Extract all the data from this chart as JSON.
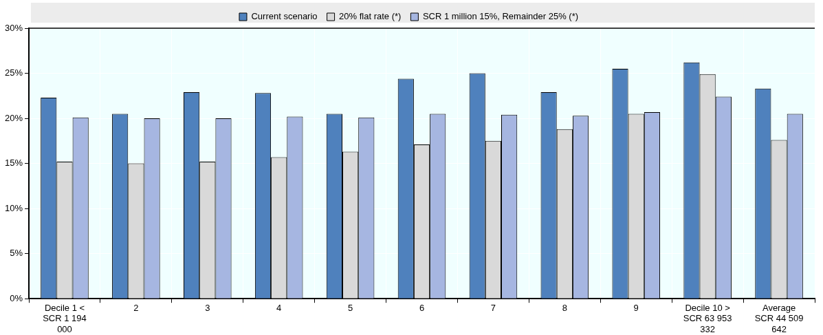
{
  "chart_data": {
    "type": "bar",
    "categories": [
      "Decile 1 < SCR 1 194 000",
      "2",
      "3",
      "4",
      "5",
      "6",
      "7",
      "8",
      "9",
      "Decile 10  > SCR 63 953 332",
      "Average SCR 44 509 642"
    ],
    "series": [
      {
        "name": "Current scenario",
        "color": "#4f81bd",
        "values": [
          22.3,
          20.5,
          22.9,
          22.8,
          20.5,
          24.4,
          25.0,
          22.9,
          25.5,
          26.2,
          23.3
        ]
      },
      {
        "name": "20% flat rate (*)",
        "color": "#d9d9d9",
        "values": [
          15.2,
          15.0,
          15.2,
          15.7,
          16.3,
          17.1,
          17.5,
          18.8,
          20.5,
          24.9,
          17.6
        ]
      },
      {
        "name": "SCR 1 million 15%, Remainder 25% (*)",
        "color": "#a6b6e1",
        "values": [
          20.1,
          20.0,
          20.0,
          20.2,
          20.1,
          20.5,
          20.4,
          20.3,
          20.7,
          22.4,
          20.5
        ]
      }
    ],
    "ylim": [
      0,
      30
    ],
    "yticks": [
      {
        "value": 0,
        "label": "0%"
      },
      {
        "value": 5,
        "label": "5%"
      },
      {
        "value": 10,
        "label": "10%"
      },
      {
        "value": 15,
        "label": "15%"
      },
      {
        "value": 20,
        "label": "20%"
      },
      {
        "value": 25,
        "label": "25%"
      },
      {
        "value": 30,
        "label": "30%"
      }
    ],
    "grid": true,
    "legend": "top"
  }
}
